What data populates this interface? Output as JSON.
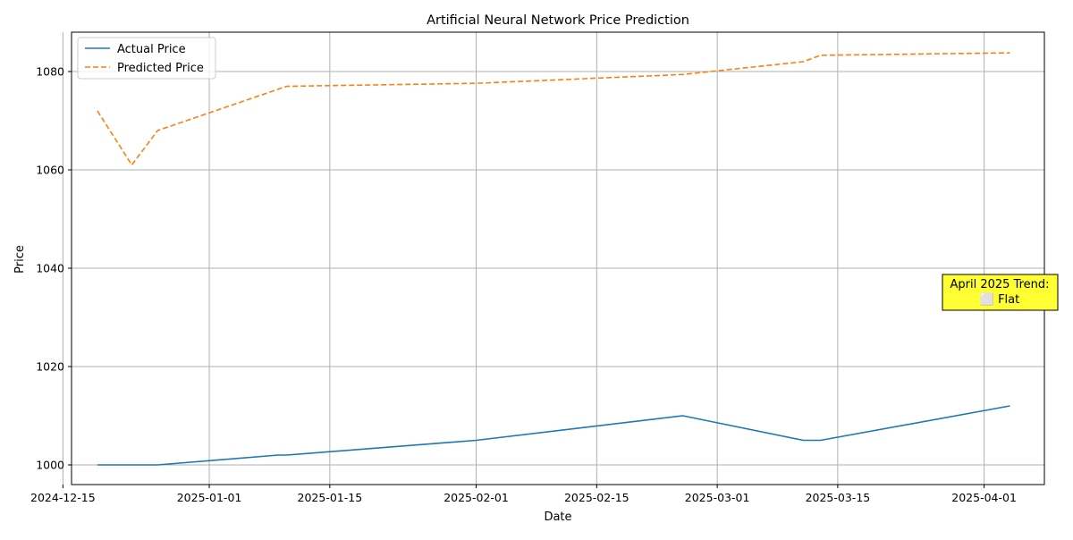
{
  "chart_data": {
    "type": "line",
    "title": "Artificial Neural Network Price Prediction",
    "xlabel": "Date",
    "ylabel": "Price",
    "x_type": "date",
    "xlim": [
      "2024-12-16",
      "2025-04-08"
    ],
    "ylim": [
      996,
      1088
    ],
    "x_ticks": [
      "2024-12-15",
      "2025-01-01",
      "2025-01-15",
      "2025-02-01",
      "2025-02-15",
      "2025-03-01",
      "2025-03-15",
      "2025-04-01"
    ],
    "y_ticks": [
      1000,
      1020,
      1040,
      1060,
      1080
    ],
    "grid": true,
    "legend_position": "top-left",
    "series": [
      {
        "name": "Actual Price",
        "color": "#1f77b4",
        "dash": "solid",
        "x": [
          "2024-12-19",
          "2024-12-23",
          "2024-12-26",
          "2025-01-09",
          "2025-01-10",
          "2025-02-01",
          "2025-02-25",
          "2025-03-11",
          "2025-03-13",
          "2025-04-04"
        ],
        "y": [
          1000,
          1000,
          1000,
          1002,
          1002,
          1005,
          1010,
          1005,
          1005,
          1012
        ]
      },
      {
        "name": "Predicted Price",
        "color": "#ff7f0e",
        "dash": "dashed",
        "x": [
          "2024-12-19",
          "2024-12-23",
          "2024-12-26",
          "2025-01-10",
          "2025-02-01",
          "2025-02-25",
          "2025-03-11",
          "2025-03-13",
          "2025-04-04"
        ],
        "y": [
          1072,
          1061,
          1068,
          1077,
          1077.6,
          1079.4,
          1082,
          1083.3,
          1083.8
        ]
      }
    ],
    "annotation": {
      "text_line1": "April 2025 Trend:",
      "text_line2": "⬜ Flat",
      "background": "#ffff33",
      "x": "2025-04-07",
      "y": 1035
    }
  }
}
